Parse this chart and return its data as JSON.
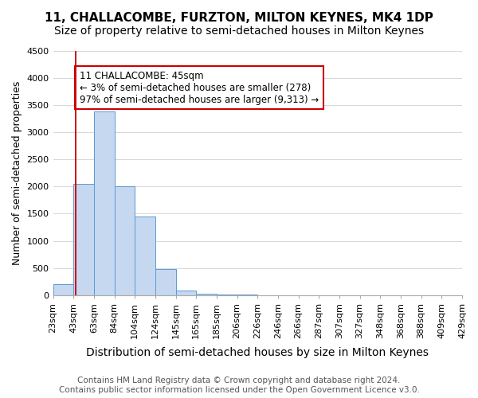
{
  "title": "11, CHALLACOMBE, FURZTON, MILTON KEYNES, MK4 1DP",
  "subtitle": "Size of property relative to semi-detached houses in Milton Keynes",
  "xlabel": "Distribution of semi-detached houses by size in Milton Keynes",
  "ylabel": "Number of semi-detached properties",
  "footer1": "Contains HM Land Registry data © Crown copyright and database right 2024.",
  "footer2": "Contains public sector information licensed under the Open Government Licence v3.0.",
  "bin_edges": [
    "23sqm",
    "43sqm",
    "63sqm",
    "84sqm",
    "104sqm",
    "124sqm",
    "145sqm",
    "165sqm",
    "185sqm",
    "206sqm",
    "226sqm",
    "246sqm",
    "266sqm",
    "287sqm",
    "307sqm",
    "327sqm",
    "348sqm",
    "368sqm",
    "388sqm",
    "409sqm",
    "429sqm"
  ],
  "bar_values": [
    200,
    2050,
    3380,
    2000,
    1450,
    480,
    90,
    30,
    15,
    5,
    2,
    1,
    0,
    0,
    0,
    0,
    0,
    0,
    0,
    0
  ],
  "bar_color": "#c5d8f0",
  "bar_edge_color": "#5b9bd5",
  "property_line_x": 1.1,
  "annotation_text": "11 CHALLACOMBE: 45sqm\n← 3% of semi-detached houses are smaller (278)\n97% of semi-detached houses are larger (9,313) →",
  "annotation_box_color": "#cc0000",
  "ylim": [
    0,
    4500
  ],
  "yticks": [
    0,
    500,
    1000,
    1500,
    2000,
    2500,
    3000,
    3500,
    4000,
    4500
  ],
  "grid_color": "#d8d8d8",
  "background_color": "#ffffff",
  "title_fontsize": 11,
  "subtitle_fontsize": 10,
  "xlabel_fontsize": 10,
  "ylabel_fontsize": 9,
  "tick_fontsize": 8,
  "annotation_fontsize": 8.5,
  "footer_fontsize": 7.5
}
